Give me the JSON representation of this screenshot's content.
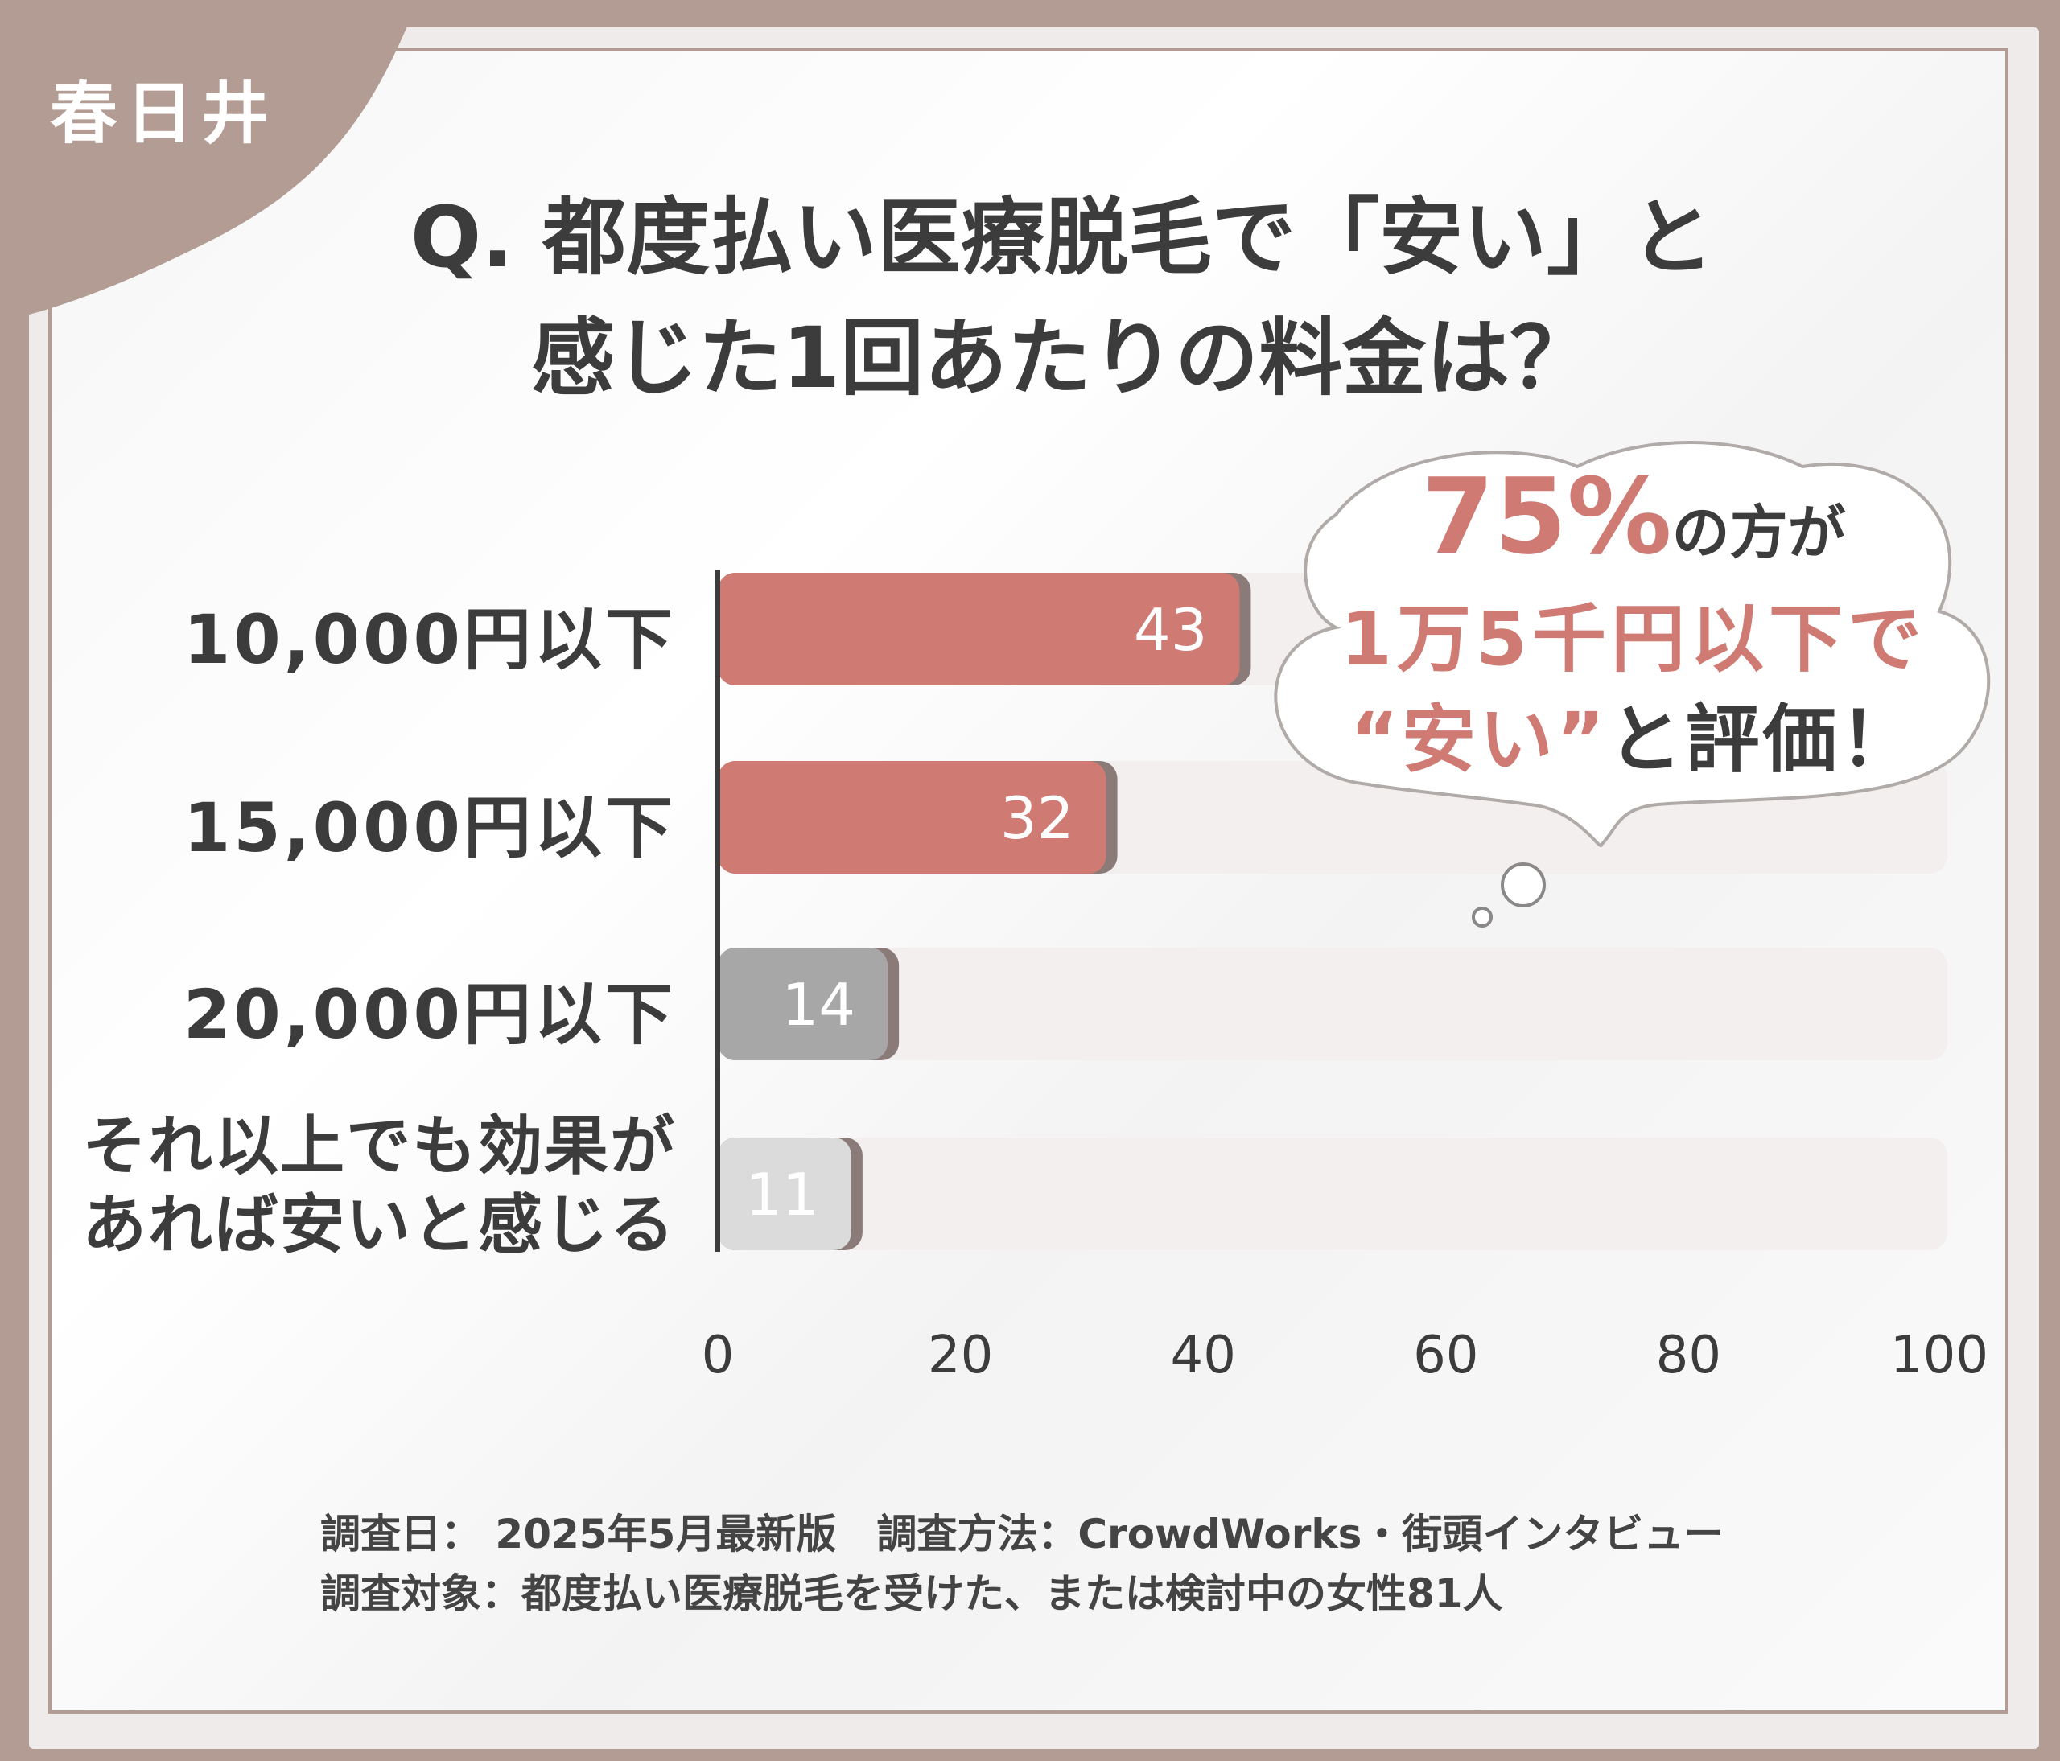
{
  "badge": {
    "city": "春日井"
  },
  "title": {
    "line1": "Q. 都度払い医療脱毛で「安い」と",
    "line2": "感じた1回あたりの料金は？"
  },
  "callout": {
    "highlight": "75%",
    "line1_rest": "の方が",
    "line2": "1万5千円以下で",
    "line3_pink": "“安い”",
    "line3_rest": "と評価！"
  },
  "colors": {
    "accent": "#d07a74",
    "frame": "#b39c94",
    "gray_dark": "#a8a7a7",
    "gray_light": "#dcdbdb",
    "track": "#f2efee",
    "text": "#3c3c3c"
  },
  "chart_data": {
    "type": "bar",
    "orientation": "horizontal",
    "categories": [
      "10,000円以下",
      "15,000円以下",
      "20,000円以下",
      "それ以上でも効果が\nあれば安いと感じる"
    ],
    "values": [
      43,
      32,
      14,
      11
    ],
    "xlim": [
      0,
      100
    ],
    "xticks": [
      0,
      20,
      40,
      60,
      80,
      100
    ],
    "bar_colors": [
      "#d07a74",
      "#d07a74",
      "#a8a7a7",
      "#dcdbdb"
    ],
    "grid": false
  },
  "footnote": {
    "line1": "調査日： 2025年5月最新版　調査方法：CrowdWorks・街頭インタビュー",
    "line2": "調査対象：都度払い医療脱毛を受けた、または検討中の女性81人"
  }
}
